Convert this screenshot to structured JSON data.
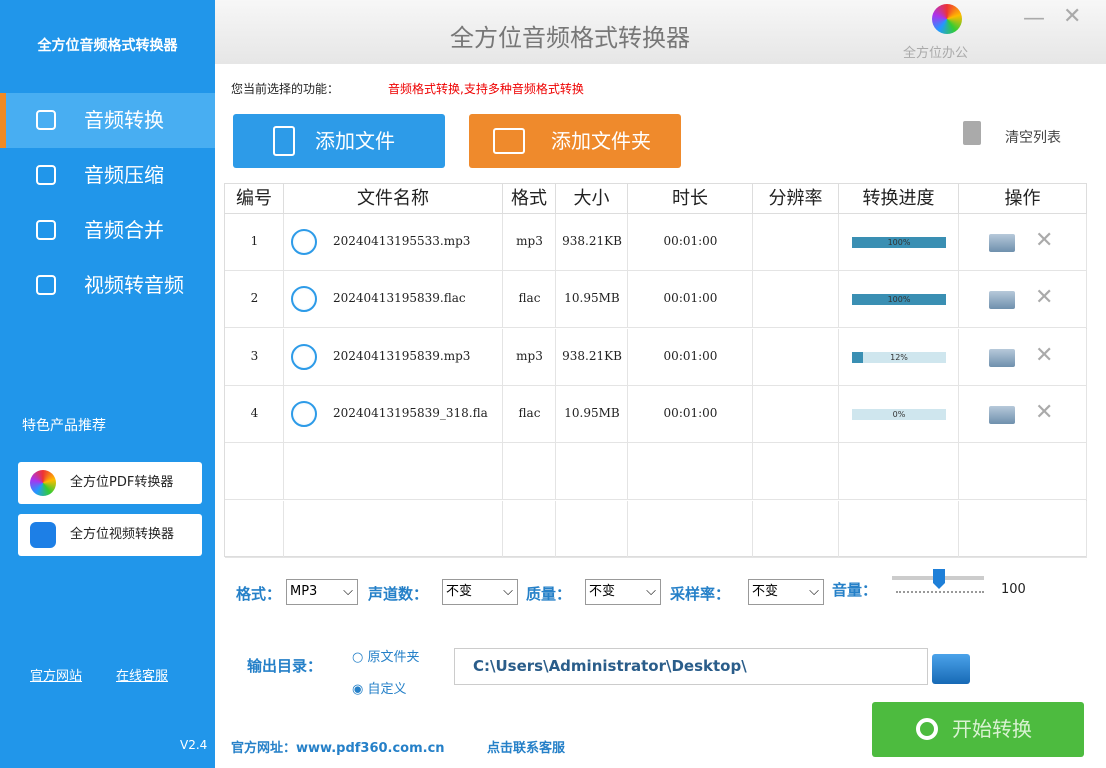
{
  "sidebar": {
    "title": "全方位音频格式转换器",
    "menu": [
      "音频转换",
      "音频压缩",
      "音频合并",
      "视频转音频"
    ],
    "recommend_title": "特色产品推荐",
    "products": [
      "全方位PDF转换器",
      "全方位视频转换器"
    ],
    "links": [
      "官方网站",
      "在线客服"
    ],
    "version": "V2.4"
  },
  "header": {
    "title": "全方位音频格式转换器",
    "brand": "全方位办公"
  },
  "function": {
    "label": "您当前选择的功能：",
    "value": "音频格式转换,支持多种音频格式转换"
  },
  "toolbar": {
    "add_file": "添加文件",
    "add_folder": "添加文件夹",
    "clear": "清空列表"
  },
  "table": {
    "columns": [
      "编号",
      "文件名称",
      "格式",
      "大小",
      "时长",
      "分辨率",
      "转换进度",
      "操作"
    ],
    "rows": [
      {
        "id": "1",
        "name": "20240413195533.mp3",
        "format": "mp3",
        "size": "938.21KB",
        "duration": "00:01:00",
        "progress": {
          "value": 100,
          "label": "100%"
        }
      },
      {
        "id": "2",
        "name": "20240413195839.flac",
        "format": "flac",
        "size": "10.95MB",
        "duration": "00:01:00",
        "progress": {
          "value": 100,
          "label": "100%"
        }
      },
      {
        "id": "3",
        "name": "20240413195839.mp3",
        "format": "mp3",
        "size": "938.21KB",
        "duration": "00:01:00",
        "progress": {
          "value": 12,
          "label": "12%"
        }
      },
      {
        "id": "4",
        "name": "20240413195839_318.fla",
        "format": "flac",
        "size": "10.95MB",
        "duration": "00:01:00",
        "progress": {
          "value": 0,
          "label": "0%"
        }
      }
    ]
  },
  "settings": {
    "format_label": "格式：",
    "format": "MP3",
    "channels_label": "声道数：",
    "channels": "不变",
    "quality_label": "质量：",
    "quality": "不变",
    "rate_label": "采样率：",
    "rate": "不变",
    "volume_label": "音量：",
    "volume": "100"
  },
  "output": {
    "label": "输出目录：",
    "options": [
      "原文件夹",
      "自定义"
    ],
    "path": "C:\\Users\\Administrator\\Desktop\\"
  },
  "start": "开始转换",
  "footer": {
    "website": "官方网址：www.pdf360.com.cn",
    "contact": "点击联系客服"
  }
}
